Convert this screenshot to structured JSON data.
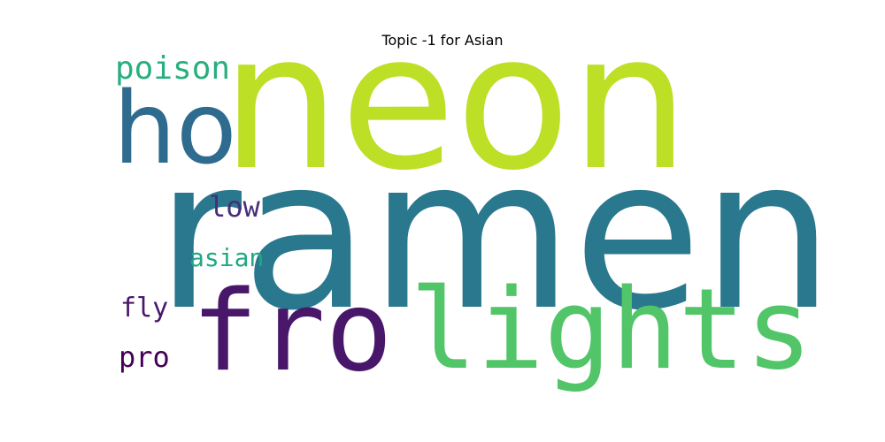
{
  "chart_data": {
    "type": "wordcloud",
    "title": "Topic -1 for Asian",
    "background": "#ffffff",
    "words": [
      {
        "text": "ramen",
        "weight": 1.0,
        "color": "#2a788e"
      },
      {
        "text": "neon",
        "weight": 0.9,
        "color": "#bddf26"
      },
      {
        "text": "lights",
        "weight": 0.55,
        "color": "#52c569"
      },
      {
        "text": "fro",
        "weight": 0.52,
        "color": "#481769"
      },
      {
        "text": "ho",
        "weight": 0.42,
        "color": "#2f6b8e"
      },
      {
        "text": "poison",
        "weight": 0.18,
        "color": "#29af7f"
      },
      {
        "text": "low",
        "weight": 0.15,
        "color": "#472d7b"
      },
      {
        "text": "asian",
        "weight": 0.14,
        "color": "#22a884"
      },
      {
        "text": "fly",
        "weight": 0.13,
        "color": "#481769"
      },
      {
        "text": "pro",
        "weight": 0.13,
        "color": "#440154"
      }
    ]
  }
}
